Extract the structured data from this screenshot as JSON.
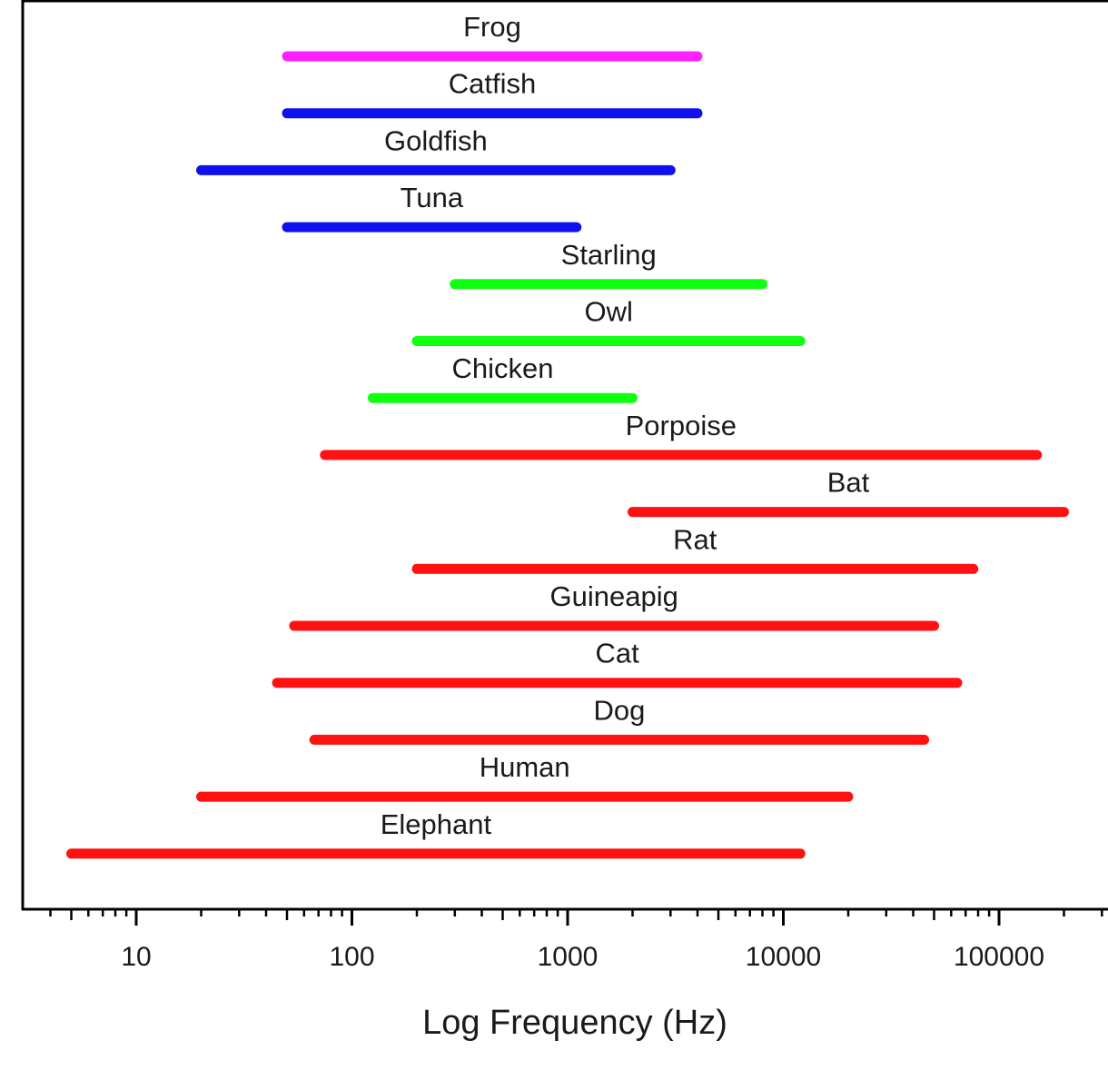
{
  "chart_data": {
    "type": "range-bar",
    "title": "",
    "xlabel": "Log Frequency (Hz)",
    "ylabel": "",
    "x_scale": "log",
    "xlim": [
      3,
      300000
    ],
    "x_tick_labels": [
      {
        "value": 10,
        "label": "10"
      },
      {
        "value": 100,
        "label": "100"
      },
      {
        "value": 1000,
        "label": "1000"
      },
      {
        "value": 10000,
        "label": "10000"
      },
      {
        "value": 100000,
        "label": "100000"
      }
    ],
    "grid": false,
    "legend": "none",
    "colors": {
      "frog": "#ff22ff",
      "fish": "#1010ee",
      "bird": "#11ff11",
      "mammal": "#ff1111",
      "axis": "#000000"
    },
    "ranges": [
      {
        "label": "Frog",
        "low": 50,
        "high": 4000,
        "color": "#ff22ff"
      },
      {
        "label": "Catfish",
        "low": 50,
        "high": 4000,
        "color": "#1010ee"
      },
      {
        "label": "Goldfish",
        "low": 20,
        "high": 3000,
        "color": "#1010ee"
      },
      {
        "label": "Tuna",
        "low": 50,
        "high": 1100,
        "color": "#1010ee"
      },
      {
        "label": "Starling",
        "low": 300,
        "high": 8000,
        "color": "#11ff11"
      },
      {
        "label": "Owl",
        "low": 200,
        "high": 12000,
        "color": "#11ff11"
      },
      {
        "label": "Chicken",
        "low": 125,
        "high": 2000,
        "color": "#11ff11"
      },
      {
        "label": "Porpoise",
        "low": 75,
        "high": 150000,
        "color": "#ff1111"
      },
      {
        "label": "Bat",
        "low": 2000,
        "high": 200000,
        "color": "#ff1111"
      },
      {
        "label": "Rat",
        "low": 200,
        "high": 76000,
        "color": "#ff1111"
      },
      {
        "label": "Guineapig",
        "low": 54,
        "high": 50000,
        "color": "#ff1111"
      },
      {
        "label": "Cat",
        "low": 45,
        "high": 64000,
        "color": "#ff1111"
      },
      {
        "label": "Dog",
        "low": 67,
        "high": 45000,
        "color": "#ff1111"
      },
      {
        "label": "Human",
        "low": 20,
        "high": 20000,
        "color": "#ff1111"
      },
      {
        "label": "Elephant",
        "low": 5,
        "high": 12000,
        "color": "#ff1111"
      }
    ]
  }
}
